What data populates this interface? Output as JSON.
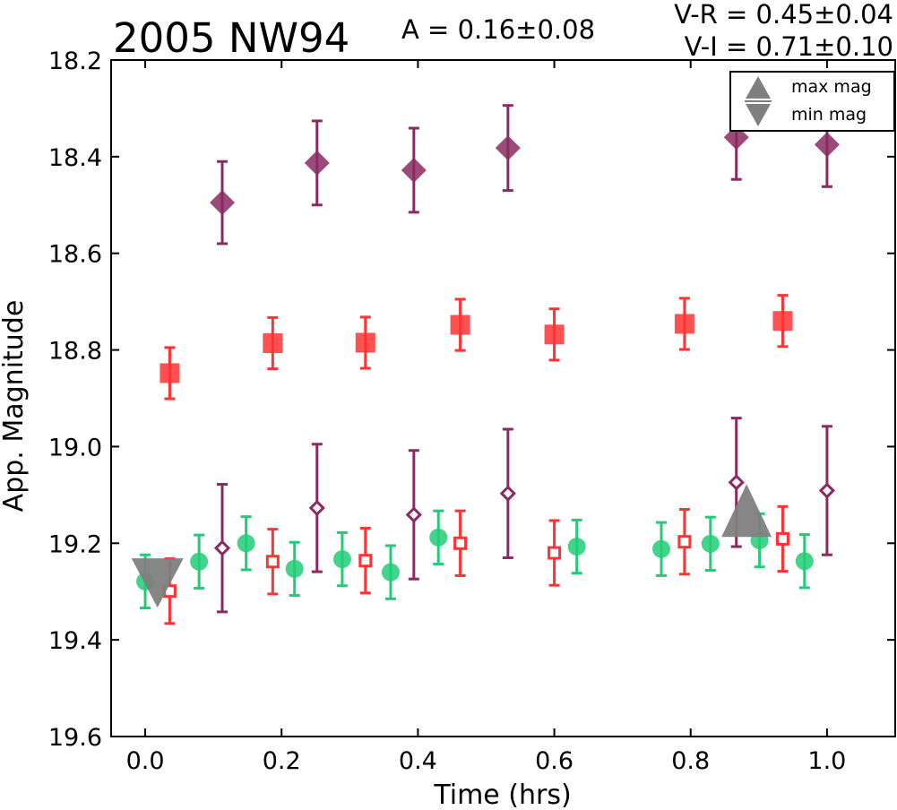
{
  "chart_data": {
    "type": "scatter",
    "title": "2005 NW94",
    "amplitude_label": "A  = 0.16±0.08",
    "color_labels": [
      "V-R = 0.45±0.04",
      "V-I  = 0.71±0.10"
    ],
    "xlabel": "Time (hrs)",
    "ylabel": "App. Magnitude",
    "xlim": [
      -0.05,
      1.1
    ],
    "ylim": [
      18.2,
      19.6
    ],
    "y_inverted": true,
    "grid": false,
    "legend_position": "top-right",
    "x_ticks": [
      "0.0",
      "0.2",
      "0.4",
      "0.6",
      "0.8",
      "1.0"
    ],
    "y_ticks": [
      "18.2",
      "18.4",
      "18.6",
      "18.8",
      "19.0",
      "19.2",
      "19.4",
      "19.6"
    ],
    "legend": [
      {
        "label": "max mag",
        "marker": "triangle-up",
        "color": "#7f7f7f"
      },
      {
        "label": "min mag",
        "marker": "triangle-down",
        "color": "#7f7f7f"
      }
    ],
    "series": [
      {
        "marker": "diamond",
        "filled": true,
        "color": "#8b2a62",
        "points": [
          {
            "x": 0.113,
            "y": 18.495,
            "err": 0.085
          },
          {
            "x": 0.252,
            "y": 18.413,
            "err": 0.087
          },
          {
            "x": 0.394,
            "y": 18.428,
            "err": 0.087
          },
          {
            "x": 0.532,
            "y": 18.382,
            "err": 0.088
          },
          {
            "x": 0.867,
            "y": 18.36,
            "err": 0.087
          },
          {
            "x": 1.0,
            "y": 18.375,
            "err": 0.087
          }
        ]
      },
      {
        "marker": "square",
        "filled": true,
        "color": "#ff3333",
        "points": [
          {
            "x": 0.036,
            "y": 18.848,
            "err": 0.053
          },
          {
            "x": 0.187,
            "y": 18.786,
            "err": 0.053
          },
          {
            "x": 0.323,
            "y": 18.785,
            "err": 0.053
          },
          {
            "x": 0.462,
            "y": 18.748,
            "err": 0.053
          },
          {
            "x": 0.6,
            "y": 18.768,
            "err": 0.053
          },
          {
            "x": 0.791,
            "y": 18.746,
            "err": 0.053
          },
          {
            "x": 0.935,
            "y": 18.74,
            "err": 0.053
          }
        ]
      },
      {
        "marker": "diamond",
        "filled": false,
        "color": "#8b2a62",
        "points": [
          {
            "x": 0.113,
            "y": 19.21,
            "err": 0.132
          },
          {
            "x": 0.252,
            "y": 19.127,
            "err": 0.132
          },
          {
            "x": 0.394,
            "y": 19.141,
            "err": 0.133
          },
          {
            "x": 0.532,
            "y": 19.097,
            "err": 0.133
          },
          {
            "x": 0.867,
            "y": 19.074,
            "err": 0.133
          },
          {
            "x": 1.0,
            "y": 19.091,
            "err": 0.133
          }
        ]
      },
      {
        "marker": "square",
        "filled": false,
        "color": "#ff3333",
        "points": [
          {
            "x": 0.036,
            "y": 19.299,
            "err": 0.067
          },
          {
            "x": 0.187,
            "y": 19.238,
            "err": 0.067
          },
          {
            "x": 0.323,
            "y": 19.236,
            "err": 0.067
          },
          {
            "x": 0.462,
            "y": 19.2,
            "err": 0.067
          },
          {
            "x": 0.6,
            "y": 19.22,
            "err": 0.067
          },
          {
            "x": 0.791,
            "y": 19.197,
            "err": 0.067
          },
          {
            "x": 0.935,
            "y": 19.191,
            "err": 0.067
          }
        ]
      },
      {
        "marker": "circle",
        "filled": true,
        "color": "#22cc77",
        "points": [
          {
            "x": 0.0,
            "y": 19.279,
            "err": 0.055
          },
          {
            "x": 0.079,
            "y": 19.238,
            "err": 0.055
          },
          {
            "x": 0.148,
            "y": 19.2,
            "err": 0.055
          },
          {
            "x": 0.219,
            "y": 19.253,
            "err": 0.055
          },
          {
            "x": 0.289,
            "y": 19.233,
            "err": 0.055
          },
          {
            "x": 0.36,
            "y": 19.26,
            "err": 0.055
          },
          {
            "x": 0.43,
            "y": 19.188,
            "err": 0.055
          },
          {
            "x": 0.633,
            "y": 19.207,
            "err": 0.055
          },
          {
            "x": 0.757,
            "y": 19.212,
            "err": 0.055
          },
          {
            "x": 0.829,
            "y": 19.201,
            "err": 0.055
          },
          {
            "x": 0.901,
            "y": 19.194,
            "err": 0.055
          },
          {
            "x": 0.967,
            "y": 19.237,
            "err": 0.055
          }
        ]
      }
    ],
    "extrema": [
      {
        "type": "min",
        "x": 0.018,
        "y": 19.285,
        "color": "#7f7f7f"
      },
      {
        "type": "max",
        "x": 0.882,
        "y": 19.135,
        "color": "#7f7f7f"
      }
    ]
  }
}
